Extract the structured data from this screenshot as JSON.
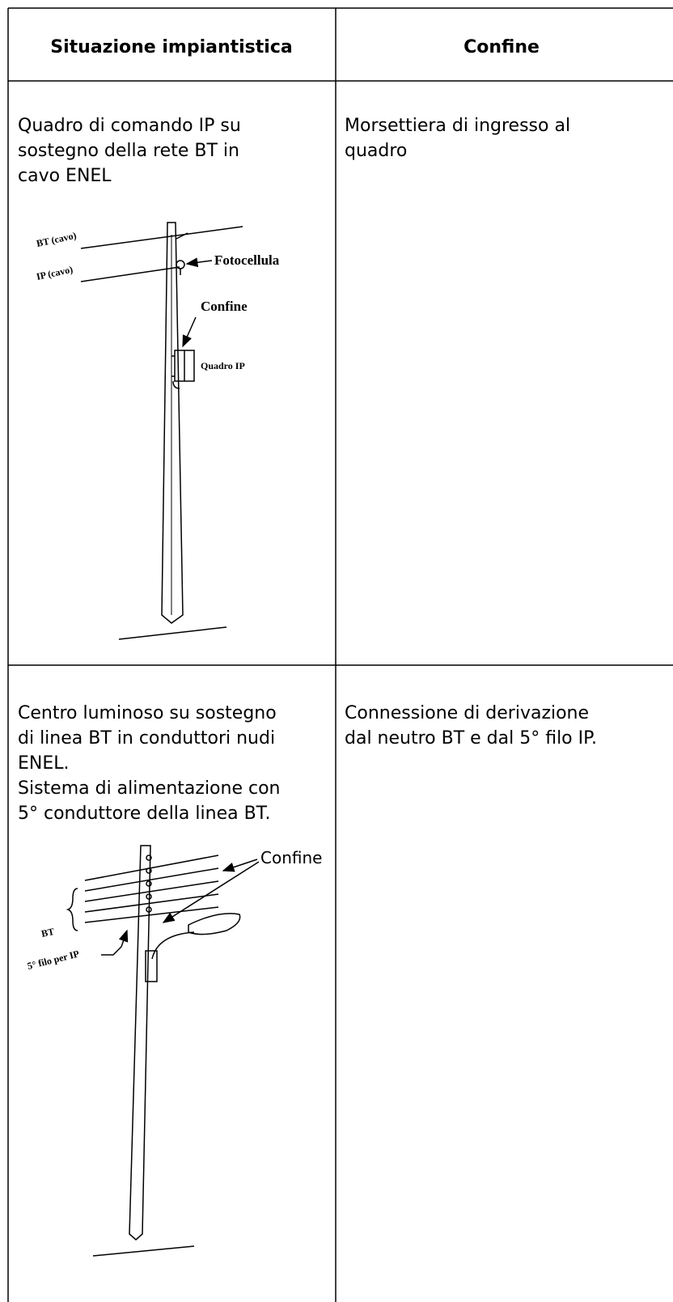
{
  "table": {
    "header": [
      "Situazione impiantistica",
      "Confine"
    ],
    "rows": [
      {
        "situation": [
          "Quadro di comando IP su",
          "sostegno della rete BT in",
          "cavo ENEL"
        ],
        "boundary": [
          "Morsettiera di ingresso al",
          "quadro"
        ],
        "diagram_labels": [
          "BT (cavo)",
          "IP (cavo)",
          "Fotocellula",
          "Confine",
          "Quadro IP"
        ]
      },
      {
        "situation": [
          "Centro luminoso su sostegno",
          "di linea BT in conduttori nudi",
          "ENEL.",
          "Sistema di alimentazione con",
          "5° conduttore della linea BT."
        ],
        "boundary": [
          "Connessione di derivazione",
          "dal neutro BT e dal 5° filo IP."
        ],
        "diagram_labels": [
          "Confine",
          "BT",
          "5° filo per IP"
        ]
      }
    ]
  }
}
